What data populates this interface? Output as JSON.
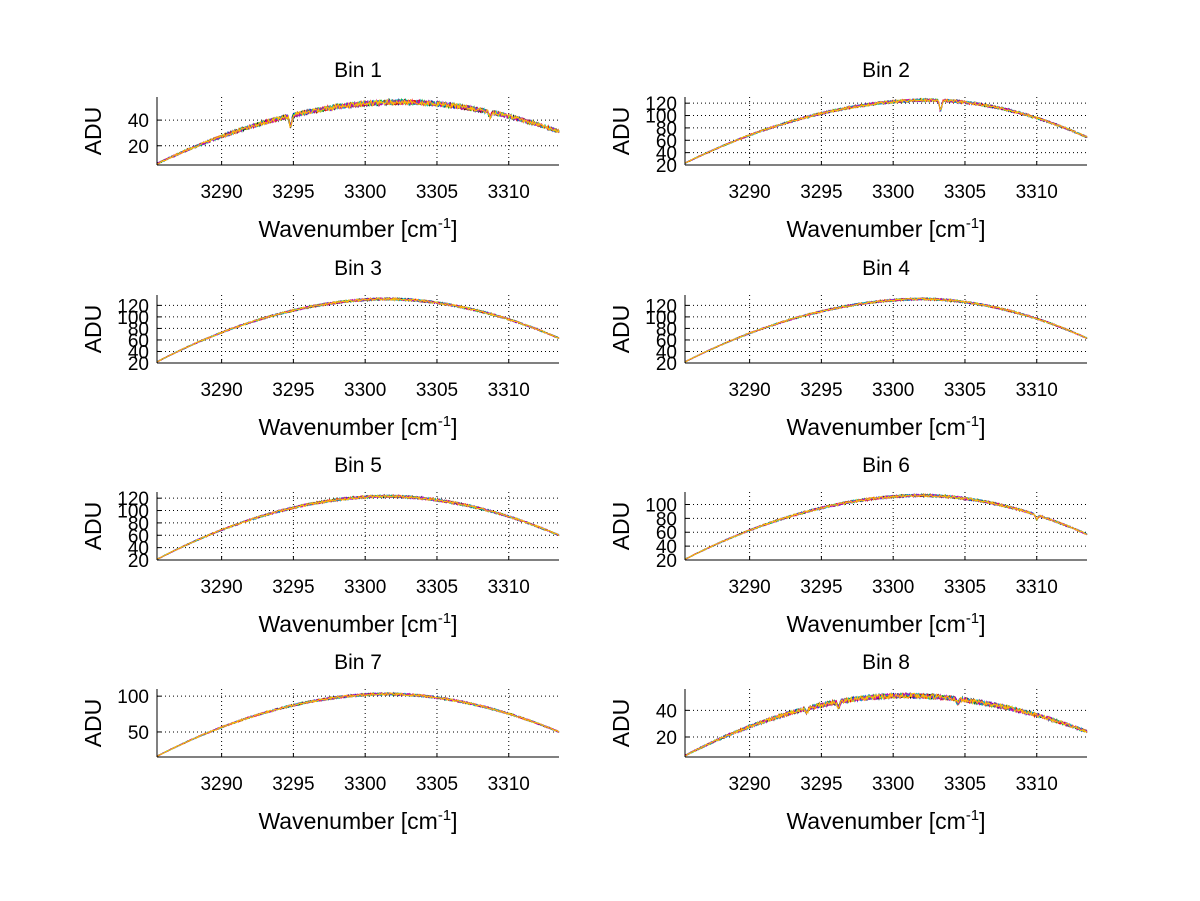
{
  "figure": {
    "background": "#ffffff"
  },
  "colors": {
    "axis": "#000000",
    "grid": "#000000",
    "series": [
      "#000000",
      "#0000ff",
      "#00aa00",
      "#ff0000",
      "#00bfbf",
      "#bf00bf",
      "#ffbf00"
    ]
  },
  "chart_data": [
    {
      "type": "line",
      "title": "Bin 1",
      "xlabel": "Wavenumber [cm",
      "xlabel_sup": "-1",
      "xlabel_tail": "]",
      "ylabel": "ADU",
      "xlim": [
        3285.5,
        3313.5
      ],
      "ylim": [
        5,
        58
      ],
      "xticks": [
        3290,
        3295,
        3300,
        3305,
        3310
      ],
      "yticks": [
        20,
        40
      ],
      "grid": true,
      "profile": {
        "start": 6,
        "peak": 54,
        "center": 3302.5,
        "end": 31
      },
      "dips": [
        {
          "x": 3294.8,
          "depth": 8
        },
        {
          "x": 3308.7,
          "depth": 4
        }
      ],
      "noise": 2.0
    },
    {
      "type": "line",
      "title": "Bin 2",
      "xlabel": "Wavenumber [cm",
      "xlabel_sup": "-1",
      "xlabel_tail": "]",
      "ylabel": "ADU",
      "xlim": [
        3285.5,
        3313.5
      ],
      "ylim": [
        20,
        130
      ],
      "xticks": [
        3290,
        3295,
        3300,
        3305,
        3310
      ],
      "yticks": [
        20,
        40,
        60,
        80,
        100,
        120
      ],
      "ytick_labels": [
        "20",
        "40",
        "60",
        "80",
        "100",
        "120"
      ],
      "grid": true,
      "profile": {
        "start": 23,
        "peak": 125,
        "center": 3302.5,
        "end": 65
      },
      "dips": [
        {
          "x": 3303.3,
          "depth": 16
        }
      ],
      "noise": 2.2
    },
    {
      "type": "line",
      "title": "Bin 3",
      "xlabel": "Wavenumber [cm",
      "xlabel_sup": "-1",
      "xlabel_tail": "]",
      "ylabel": "ADU",
      "xlim": [
        3285.5,
        3313.5
      ],
      "ylim": [
        20,
        138
      ],
      "xticks": [
        3290,
        3295,
        3300,
        3305,
        3310
      ],
      "yticks": [
        20,
        40,
        60,
        80,
        100,
        120
      ],
      "ytick_labels": [
        "20",
        "40",
        "60",
        "80",
        "100",
        "120"
      ],
      "grid": true,
      "profile": {
        "start": 22,
        "peak": 131,
        "center": 3301.5,
        "end": 63
      },
      "dips": [],
      "noise": 2.0
    },
    {
      "type": "line",
      "title": "Bin 4",
      "xlabel": "Wavenumber [cm",
      "xlabel_sup": "-1",
      "xlabel_tail": "]",
      "ylabel": "ADU",
      "xlim": [
        3285.5,
        3313.5
      ],
      "ylim": [
        20,
        138
      ],
      "xticks": [
        3290,
        3295,
        3300,
        3305,
        3310
      ],
      "yticks": [
        20,
        40,
        60,
        80,
        100,
        120
      ],
      "ytick_labels": [
        "20",
        "40",
        "60",
        "80",
        "100",
        "120"
      ],
      "grid": true,
      "profile": {
        "start": 22,
        "peak": 131,
        "center": 3302.0,
        "end": 63
      },
      "dips": [],
      "noise": 1.8
    },
    {
      "type": "line",
      "title": "Bin 5",
      "xlabel": "Wavenumber [cm",
      "xlabel_sup": "-1",
      "xlabel_tail": "]",
      "ylabel": "ADU",
      "xlim": [
        3285.5,
        3313.5
      ],
      "ylim": [
        20,
        130
      ],
      "xticks": [
        3290,
        3295,
        3300,
        3305,
        3310
      ],
      "yticks": [
        20,
        40,
        60,
        80,
        100,
        120
      ],
      "ytick_labels": [
        "20",
        "40",
        "60",
        "80",
        "100",
        "120"
      ],
      "grid": true,
      "profile": {
        "start": 21,
        "peak": 123,
        "center": 3301.5,
        "end": 60
      },
      "dips": [],
      "noise": 2.0
    },
    {
      "type": "line",
      "title": "Bin 6",
      "xlabel": "Wavenumber [cm",
      "xlabel_sup": "-1",
      "xlabel_tail": "]",
      "ylabel": "ADU",
      "xlim": [
        3285.5,
        3313.5
      ],
      "ylim": [
        20,
        118
      ],
      "xticks": [
        3290,
        3295,
        3300,
        3305,
        3310
      ],
      "yticks": [
        20,
        40,
        60,
        80,
        100
      ],
      "ytick_labels": [
        "20",
        "40",
        "60",
        "80",
        "100"
      ],
      "grid": true,
      "profile": {
        "start": 21,
        "peak": 113,
        "center": 3302.0,
        "end": 57
      },
      "dips": [
        {
          "x": 3310.0,
          "depth": 6
        }
      ],
      "noise": 1.8
    },
    {
      "type": "line",
      "title": "Bin 7",
      "xlabel": "Wavenumber [cm",
      "xlabel_sup": "-1",
      "xlabel_tail": "]",
      "ylabel": "ADU",
      "xlim": [
        3285.5,
        3313.5
      ],
      "ylim": [
        15,
        110
      ],
      "xticks": [
        3290,
        3295,
        3300,
        3305,
        3310
      ],
      "yticks": [
        50,
        100
      ],
      "grid": true,
      "profile": {
        "start": 16,
        "peak": 103,
        "center": 3301.5,
        "end": 50
      },
      "dips": [],
      "noise": 1.6
    },
    {
      "type": "line",
      "title": "Bin 8",
      "xlabel": "Wavenumber [cm",
      "xlabel_sup": "-1",
      "xlabel_tail": "]",
      "ylabel": "ADU",
      "xlim": [
        3285.5,
        3313.5
      ],
      "ylim": [
        5,
        56
      ],
      "xticks": [
        3290,
        3295,
        3300,
        3305,
        3310
      ],
      "yticks": [
        20,
        40
      ],
      "grid": true,
      "profile": {
        "start": 6,
        "peak": 51,
        "center": 3300.8,
        "end": 24
      },
      "dips": [
        {
          "x": 3296.2,
          "depth": 4
        },
        {
          "x": 3294.0,
          "depth": 3
        },
        {
          "x": 3304.5,
          "depth": 3
        }
      ],
      "noise": 1.8
    }
  ]
}
